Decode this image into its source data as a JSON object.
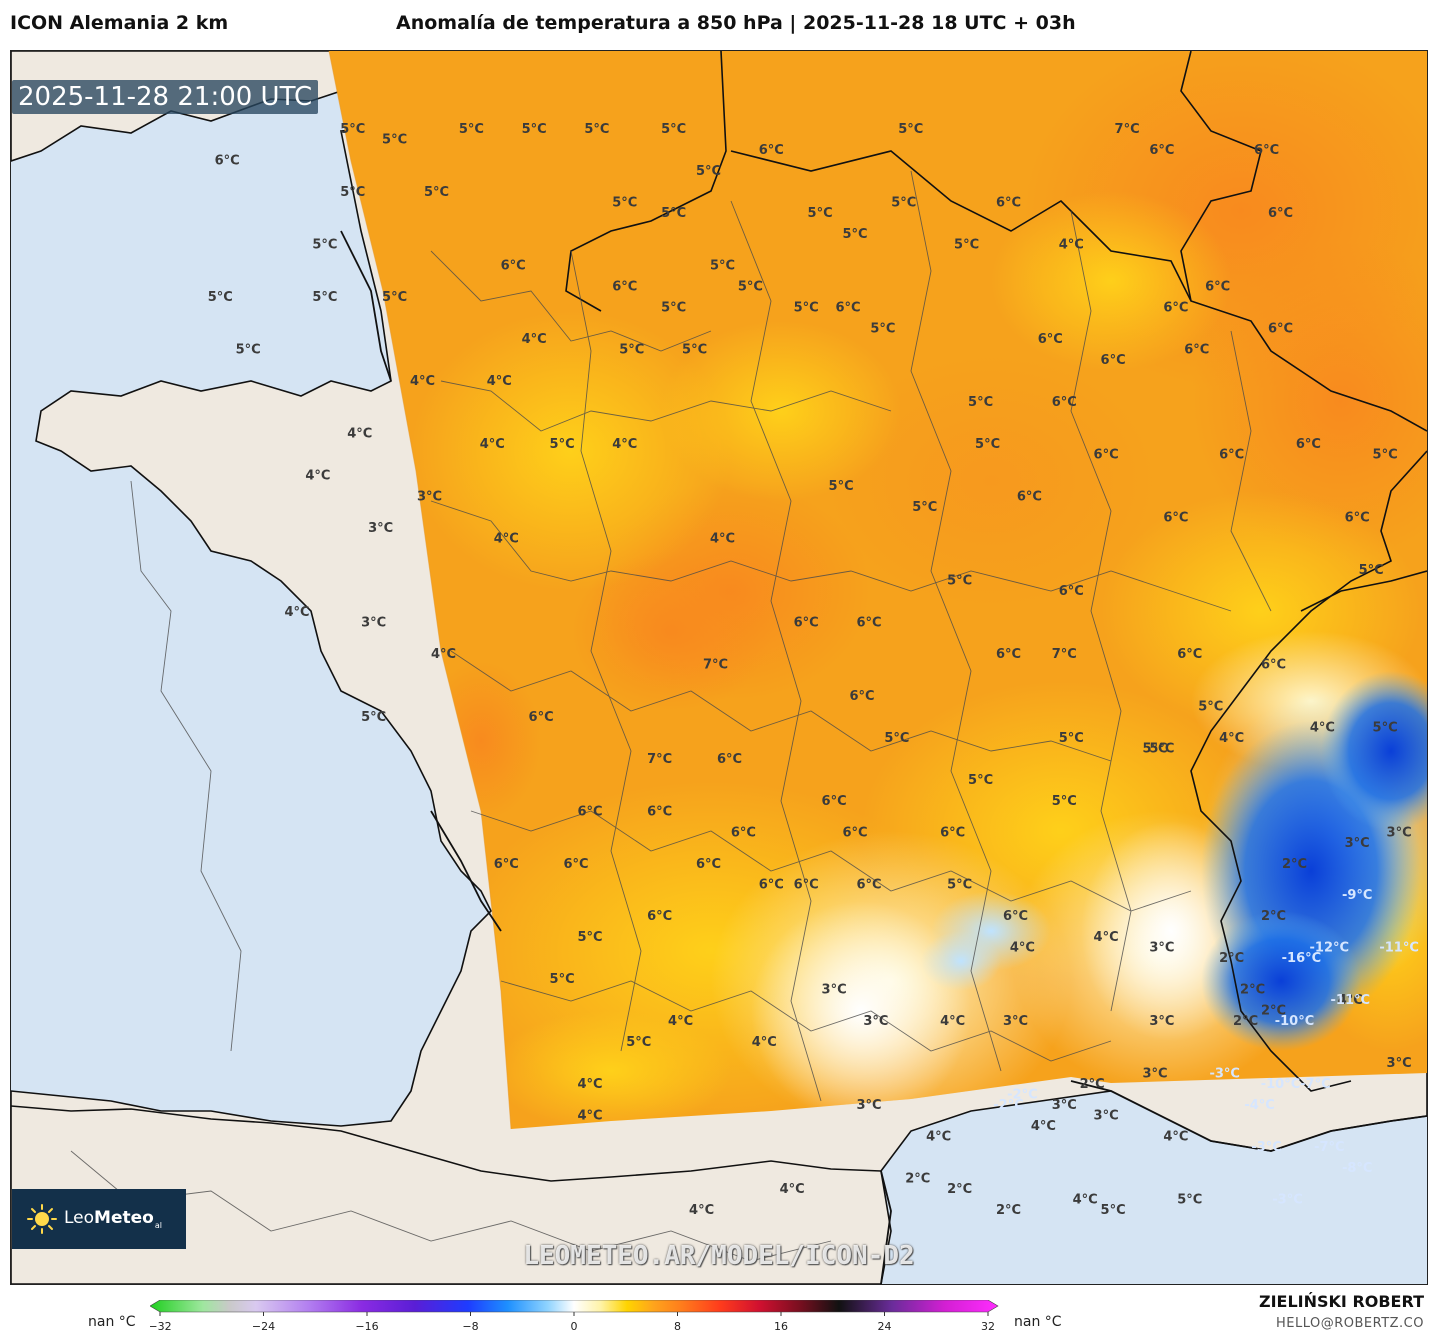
{
  "header": {
    "model": "ICON Alemania 2 km",
    "title": "Anomalía de temperatura a 850 hPa | 2025-11-28 18 UTC + 03h"
  },
  "map": {
    "timestamp": "2025-11-28 21:00 UTC",
    "watermark": "LEOMETEO.AR/MODEL/ICON-D2",
    "logo": {
      "brand_light": "Leo",
      "brand_bold": "Meteo",
      "brand_suffix": "al"
    },
    "colors": {
      "sea": "#d5e4f3",
      "land": "#efe9e0",
      "field_base": "#f6a21c"
    },
    "labels": [
      {
        "t": "5°C",
        "lon": -0.4,
        "lat": 50.6
      },
      {
        "t": "6°C",
        "lon": -2.2,
        "lat": 50.3
      },
      {
        "t": "5°C",
        "lon": 0.2,
        "lat": 50.5
      },
      {
        "t": "5°C",
        "lon": 1.3,
        "lat": 50.6
      },
      {
        "t": "5°C",
        "lon": 2.2,
        "lat": 50.6
      },
      {
        "t": "5°C",
        "lon": 3.1,
        "lat": 50.6
      },
      {
        "t": "5°C",
        "lon": 4.2,
        "lat": 50.6
      },
      {
        "t": "6°C",
        "lon": 5.6,
        "lat": 50.4
      },
      {
        "t": "5°C",
        "lon": 7.6,
        "lat": 50.6
      },
      {
        "t": "7°C",
        "lon": 10.7,
        "lat": 50.6
      },
      {
        "t": "6°C",
        "lon": 11.2,
        "lat": 50.4
      },
      {
        "t": "6°C",
        "lon": 12.7,
        "lat": 50.4
      },
      {
        "t": "5°C",
        "lon": -0.4,
        "lat": 50.0
      },
      {
        "t": "5°C",
        "lon": 0.8,
        "lat": 50.0
      },
      {
        "t": "5°C",
        "lon": 4.7,
        "lat": 50.2
      },
      {
        "t": "5°C",
        "lon": 3.5,
        "lat": 49.9
      },
      {
        "t": "5°C",
        "lon": 4.2,
        "lat": 49.8
      },
      {
        "t": "5°C",
        "lon": 6.3,
        "lat": 49.8
      },
      {
        "t": "5°C",
        "lon": 7.5,
        "lat": 49.9
      },
      {
        "t": "6°C",
        "lon": 9.0,
        "lat": 49.9
      },
      {
        "t": "6°C",
        "lon": 12.9,
        "lat": 49.8
      },
      {
        "t": "5°C",
        "lon": -0.8,
        "lat": 49.5
      },
      {
        "t": "6°C",
        "lon": 1.9,
        "lat": 49.3
      },
      {
        "t": "6°C",
        "lon": 3.5,
        "lat": 49.1
      },
      {
        "t": "5°C",
        "lon": 4.9,
        "lat": 49.3
      },
      {
        "t": "5°C",
        "lon": 5.3,
        "lat": 49.1
      },
      {
        "t": "5°C",
        "lon": 6.8,
        "lat": 49.6
      },
      {
        "t": "5°C",
        "lon": 8.4,
        "lat": 49.5
      },
      {
        "t": "4°C",
        "lon": 9.9,
        "lat": 49.5
      },
      {
        "t": "6°C",
        "lon": 12.0,
        "lat": 49.1
      },
      {
        "t": "5°C",
        "lon": -2.3,
        "lat": 49.0
      },
      {
        "t": "5°C",
        "lon": -0.8,
        "lat": 49.0
      },
      {
        "t": "5°C",
        "lon": 0.2,
        "lat": 49.0
      },
      {
        "t": "5°C",
        "lon": 4.2,
        "lat": 48.9
      },
      {
        "t": "5°C",
        "lon": 6.1,
        "lat": 48.9
      },
      {
        "t": "6°C",
        "lon": 6.7,
        "lat": 48.9
      },
      {
        "t": "6°C",
        "lon": 11.4,
        "lat": 48.9
      },
      {
        "t": "6°C",
        "lon": 12.9,
        "lat": 48.7
      },
      {
        "t": "5°C",
        "lon": -1.9,
        "lat": 48.5
      },
      {
        "t": "4°C",
        "lon": 2.2,
        "lat": 48.6
      },
      {
        "t": "5°C",
        "lon": 3.6,
        "lat": 48.5
      },
      {
        "t": "5°C",
        "lon": 4.5,
        "lat": 48.5
      },
      {
        "t": "5°C",
        "lon": 7.2,
        "lat": 48.7
      },
      {
        "t": "6°C",
        "lon": 9.6,
        "lat": 48.6
      },
      {
        "t": "6°C",
        "lon": 10.5,
        "lat": 48.4
      },
      {
        "t": "6°C",
        "lon": 11.7,
        "lat": 48.5
      },
      {
        "t": "4°C",
        "lon": 0.6,
        "lat": 48.2
      },
      {
        "t": "4°C",
        "lon": 1.7,
        "lat": 48.2
      },
      {
        "t": "5°C",
        "lon": 8.6,
        "lat": 48.0
      },
      {
        "t": "6°C",
        "lon": 9.8,
        "lat": 48.0
      },
      {
        "t": "4°C",
        "lon": -0.3,
        "lat": 47.7
      },
      {
        "t": "4°C",
        "lon": 1.6,
        "lat": 47.6
      },
      {
        "t": "5°C",
        "lon": 2.6,
        "lat": 47.6
      },
      {
        "t": "4°C",
        "lon": 3.5,
        "lat": 47.6
      },
      {
        "t": "5°C",
        "lon": 8.7,
        "lat": 47.6
      },
      {
        "t": "6°C",
        "lon": 10.4,
        "lat": 47.5
      },
      {
        "t": "6°C",
        "lon": 12.2,
        "lat": 47.5
      },
      {
        "t": "6°C",
        "lon": 13.3,
        "lat": 47.6
      },
      {
        "t": "5°C",
        "lon": 14.4,
        "lat": 47.5
      },
      {
        "t": "4°C",
        "lon": -0.9,
        "lat": 47.3
      },
      {
        "t": "3°C",
        "lon": 0.7,
        "lat": 47.1
      },
      {
        "t": "5°C",
        "lon": 6.6,
        "lat": 47.2
      },
      {
        "t": "5°C",
        "lon": 7.8,
        "lat": 47.0
      },
      {
        "t": "6°C",
        "lon": 9.3,
        "lat": 47.1
      },
      {
        "t": "6°C",
        "lon": 11.4,
        "lat": 46.9
      },
      {
        "t": "3°C",
        "lon": 0.0,
        "lat": 46.8
      },
      {
        "t": "4°C",
        "lon": 1.8,
        "lat": 46.7
      },
      {
        "t": "4°C",
        "lon": 4.9,
        "lat": 46.7
      },
      {
        "t": "5°C",
        "lon": 8.3,
        "lat": 46.3
      },
      {
        "t": "6°C",
        "lon": 9.9,
        "lat": 46.2
      },
      {
        "t": "5°C",
        "lon": 14.2,
        "lat": 46.4
      },
      {
        "t": "4°C",
        "lon": -1.2,
        "lat": 46.0
      },
      {
        "t": "3°C",
        "lon": -0.1,
        "lat": 45.9
      },
      {
        "t": "4°C",
        "lon": 0.9,
        "lat": 45.6
      },
      {
        "t": "6°C",
        "lon": 6.1,
        "lat": 45.9
      },
      {
        "t": "6°C",
        "lon": 7.0,
        "lat": 45.9
      },
      {
        "t": "6°C",
        "lon": 9.0,
        "lat": 45.6
      },
      {
        "t": "7°C",
        "lon": 9.8,
        "lat": 45.6
      },
      {
        "t": "6°C",
        "lon": 11.6,
        "lat": 45.6
      },
      {
        "t": "6°C",
        "lon": 12.8,
        "lat": 45.5
      },
      {
        "t": "7°C",
        "lon": 4.8,
        "lat": 45.5
      },
      {
        "t": "6°C",
        "lon": 6.9,
        "lat": 45.2
      },
      {
        "t": "6°C",
        "lon": 2.3,
        "lat": 45.0
      },
      {
        "t": "5°C",
        "lon": -0.1,
        "lat": 45.0
      },
      {
        "t": "5°C",
        "lon": 7.4,
        "lat": 44.8
      },
      {
        "t": "5°C",
        "lon": 9.9,
        "lat": 44.8
      },
      {
        "t": "5°C",
        "lon": 11.1,
        "lat": 44.7
      },
      {
        "t": "4°C",
        "lon": 12.2,
        "lat": 44.8
      },
      {
        "t": "4°C",
        "lon": 13.5,
        "lat": 44.9
      },
      {
        "t": "7°C",
        "lon": 4.0,
        "lat": 44.6
      },
      {
        "t": "6°C",
        "lon": 5.0,
        "lat": 44.6
      },
      {
        "t": "5°C",
        "lon": 8.6,
        "lat": 44.4
      },
      {
        "t": "5°C",
        "lon": 9.8,
        "lat": 44.2
      },
      {
        "t": "6°C",
        "lon": 3.0,
        "lat": 44.1
      },
      {
        "t": "6°C",
        "lon": 4.0,
        "lat": 44.1
      },
      {
        "t": "6°C",
        "lon": 6.5,
        "lat": 44.2
      },
      {
        "t": "6°C",
        "lon": 5.2,
        "lat": 43.9
      },
      {
        "t": "6°C",
        "lon": 6.8,
        "lat": 43.9
      },
      {
        "t": "6°C",
        "lon": 8.2,
        "lat": 43.9
      },
      {
        "t": "3°C",
        "lon": 14.6,
        "lat": 43.9
      },
      {
        "t": "6°C",
        "lon": 1.8,
        "lat": 43.6
      },
      {
        "t": "6°C",
        "lon": 2.8,
        "lat": 43.6
      },
      {
        "t": "6°C",
        "lon": 4.7,
        "lat": 43.6
      },
      {
        "t": "5°C",
        "lon": 8.3,
        "lat": 43.4
      },
      {
        "t": "6°C",
        "lon": 6.1,
        "lat": 43.4
      },
      {
        "t": "2°C",
        "lon": 13.1,
        "lat": 43.6
      },
      {
        "t": "6°C",
        "lon": 5.6,
        "lat": 43.4
      },
      {
        "t": "6°C",
        "lon": 7.0,
        "lat": 43.4
      },
      {
        "t": "6°C",
        "lon": 9.1,
        "lat": 43.1
      },
      {
        "t": "2°C",
        "lon": 12.8,
        "lat": 43.1
      },
      {
        "t": "6°C",
        "lon": 4.0,
        "lat": 43.1
      },
      {
        "t": "4°C",
        "lon": 10.4,
        "lat": 42.9
      },
      {
        "t": "5°C",
        "lon": 3.0,
        "lat": 42.9
      },
      {
        "t": "5°C",
        "lon": 2.6,
        "lat": 42.5
      },
      {
        "t": "3°C",
        "lon": 11.2,
        "lat": 42.8
      },
      {
        "t": "4°C",
        "lon": 9.2,
        "lat": 42.8
      },
      {
        "t": "2°C",
        "lon": 12.2,
        "lat": 42.7
      },
      {
        "t": "3°C",
        "lon": 6.5,
        "lat": 42.4
      },
      {
        "t": "2°C",
        "lon": 12.5,
        "lat": 42.4
      },
      {
        "t": "3°C",
        "lon": 7.1,
        "lat": 42.1
      },
      {
        "t": "4°C",
        "lon": 8.2,
        "lat": 42.1
      },
      {
        "t": "3°C",
        "lon": 9.1,
        "lat": 42.1
      },
      {
        "t": "2°C",
        "lon": 12.4,
        "lat": 42.1
      },
      {
        "t": "4°C",
        "lon": 4.3,
        "lat": 42.1
      },
      {
        "t": "3°C",
        "lon": 11.2,
        "lat": 42.1
      },
      {
        "t": "5°C",
        "lon": 3.7,
        "lat": 41.9
      },
      {
        "t": "4°C",
        "lon": 5.5,
        "lat": 41.9
      },
      {
        "t": "3°C",
        "lon": 11.1,
        "lat": 41.6
      },
      {
        "t": "4°C",
        "lon": 3.0,
        "lat": 41.5
      },
      {
        "t": "2°C",
        "lon": 10.2,
        "lat": 41.5
      },
      {
        "t": "3°C",
        "lon": 7.0,
        "lat": 41.3
      },
      {
        "t": "4°C",
        "lon": 3.0,
        "lat": 41.2
      },
      {
        "t": "4°C",
        "lon": 11.4,
        "lat": 41.0
      },
      {
        "t": "4°C",
        "lon": 9.5,
        "lat": 41.1
      },
      {
        "t": "3°C",
        "lon": 10.4,
        "lat": 41.2
      },
      {
        "t": "4°C",
        "lon": 8.0,
        "lat": 41.0
      },
      {
        "t": "4°C",
        "lon": 5.9,
        "lat": 40.5
      },
      {
        "t": "3°C",
        "lon": 9.8,
        "lat": 41.3
      },
      {
        "t": "2°C",
        "lon": 7.7,
        "lat": 40.6
      },
      {
        "t": "2°C",
        "lon": 8.3,
        "lat": 40.5
      },
      {
        "t": "2°C",
        "lon": 9.0,
        "lat": 40.3
      },
      {
        "t": "4°C",
        "lon": 10.1,
        "lat": 40.4
      },
      {
        "t": "4°C",
        "lon": 4.6,
        "lat": 40.3
      },
      {
        "t": "5°C",
        "lon": 10.5,
        "lat": 40.3
      },
      {
        "t": "5°C",
        "lon": 11.6,
        "lat": 40.4
      },
      {
        "t": "3°C",
        "lon": 14.0,
        "lat": 43.8
      },
      {
        "t": "5°C",
        "lon": 14.4,
        "lat": 44.9
      },
      {
        "t": "6°C",
        "lon": 14.0,
        "lat": 46.9
      },
      {
        "t": "4°C",
        "lon": 13.9,
        "lat": 42.3
      },
      {
        "t": "3°C",
        "lon": 14.6,
        "lat": 41.7
      },
      {
        "t": "5°C",
        "lon": 11.9,
        "lat": 45.1
      },
      {
        "t": "5°C",
        "lon": 11.2,
        "lat": 44.7
      },
      {
        "t": "2°C",
        "lon": 12.8,
        "lat": 42.2
      }
    ],
    "cold_labels": [
      {
        "t": "-9°C",
        "lon": 14.0,
        "lat": 43.3
      },
      {
        "t": "-12°C",
        "lon": 13.6,
        "lat": 42.8
      },
      {
        "t": "-11°C",
        "lon": 14.6,
        "lat": 42.8
      },
      {
        "t": "-16°C",
        "lon": 13.2,
        "lat": 42.7
      },
      {
        "t": "-11°C",
        "lon": 13.9,
        "lat": 42.3
      },
      {
        "t": "-10°C",
        "lon": 13.1,
        "lat": 42.1
      },
      {
        "t": "-10°C",
        "lon": 12.9,
        "lat": 41.5
      },
      {
        "t": "-7°C",
        "lon": 13.4,
        "lat": 41.5
      },
      {
        "t": "-3°C",
        "lon": 12.1,
        "lat": 41.6
      },
      {
        "t": "-4°C",
        "lon": 12.6,
        "lat": 41.3
      },
      {
        "t": "-3°C",
        "lon": 12.7,
        "lat": 40.9
      },
      {
        "t": "-7°C",
        "lon": 13.6,
        "lat": 40.9
      },
      {
        "t": "-8°C",
        "lon": 14.0,
        "lat": 40.7
      },
      {
        "t": "-3°C",
        "lon": 13.0,
        "lat": 40.4
      },
      {
        "t": "-2°C",
        "lon": 9.2,
        "lat": 41.4
      },
      {
        "t": "-2°C",
        "lon": 9.0,
        "lat": 41.3
      }
    ]
  },
  "colorbar": {
    "nan_left": "nan °C",
    "nan_right": "nan °C",
    "ticks": [
      "−32",
      "−24",
      "−16",
      "−8",
      "0",
      "8",
      "16",
      "24",
      "32"
    ],
    "stops": [
      {
        "v": -32,
        "c": "#1fcf1f"
      },
      {
        "v": -28,
        "c": "#9fe79f"
      },
      {
        "v": -26,
        "c": "#c9c9c9"
      },
      {
        "v": -24,
        "c": "#d9c9f0"
      },
      {
        "v": -20,
        "c": "#b27ef0"
      },
      {
        "v": -16,
        "c": "#8a2be2"
      },
      {
        "v": -12,
        "c": "#5a1ed6"
      },
      {
        "v": -8,
        "c": "#1e3cff"
      },
      {
        "v": -5,
        "c": "#1e90ff"
      },
      {
        "v": -2,
        "c": "#8fd3ff"
      },
      {
        "v": 0,
        "c": "#ffffff"
      },
      {
        "v": 2,
        "c": "#fff3a8"
      },
      {
        "v": 4,
        "c": "#ffd400"
      },
      {
        "v": 6,
        "c": "#ffa41c"
      },
      {
        "v": 8,
        "c": "#ff7f1c"
      },
      {
        "v": 11,
        "c": "#ff3c1c"
      },
      {
        "v": 14,
        "c": "#d01030"
      },
      {
        "v": 17,
        "c": "#7a0f20"
      },
      {
        "v": 20,
        "c": "#111111"
      },
      {
        "v": 24,
        "c": "#6a2c9a"
      },
      {
        "v": 28,
        "c": "#d31fd3"
      },
      {
        "v": 32,
        "c": "#ff2cff"
      }
    ]
  },
  "credits": {
    "name": "ZIELIŃSKI ROBERT",
    "email": "HELLO@ROBERTZ.CO"
  }
}
